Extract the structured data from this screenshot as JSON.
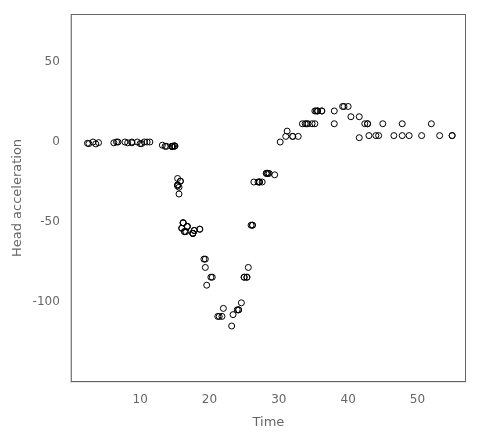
{
  "chart_data": {
    "type": "scatter",
    "x": [
      2.4,
      2.6,
      3.2,
      3.6,
      4.0,
      6.2,
      6.6,
      6.8,
      7.8,
      8.2,
      8.8,
      8.8,
      9.6,
      10.0,
      10.2,
      10.6,
      11.0,
      11.4,
      13.2,
      13.6,
      13.8,
      14.6,
      14.6,
      14.6,
      14.6,
      14.6,
      14.6,
      14.8,
      15.0,
      15.0,
      15.0,
      15.4,
      15.4,
      15.4,
      15.4,
      15.6,
      15.6,
      15.8,
      15.8,
      16.0,
      16.0,
      16.2,
      16.2,
      16.2,
      16.4,
      16.4,
      16.6,
      16.8,
      16.8,
      16.8,
      17.6,
      17.6,
      17.6,
      17.6,
      17.8,
      17.8,
      18.6,
      18.6,
      19.2,
      19.4,
      19.4,
      19.6,
      20.2,
      20.4,
      21.2,
      21.4,
      21.8,
      22.0,
      23.2,
      23.4,
      24.0,
      24.2,
      24.2,
      24.6,
      25.0,
      25.0,
      25.4,
      25.4,
      25.6,
      26.0,
      26.2,
      26.2,
      26.4,
      27.0,
      27.2,
      27.2,
      27.2,
      27.6,
      28.2,
      28.2,
      28.4,
      28.4,
      28.6,
      29.4,
      30.2,
      31.0,
      31.2,
      32.0,
      32.0,
      32.8,
      33.4,
      33.8,
      34.0,
      34.2,
      34.8,
      35.2,
      35.2,
      35.4,
      35.6,
      35.6,
      36.2,
      36.2,
      38.0,
      38.0,
      39.2,
      39.4,
      40.0,
      40.4,
      41.6,
      41.6,
      42.4,
      42.8,
      42.8,
      43.0,
      44.0,
      44.4,
      45.0,
      46.6,
      47.8,
      47.8,
      48.8,
      50.6,
      52.0,
      53.2,
      55.0,
      55.0
    ],
    "values": [
      -0.8,
      -1.0,
      0.0,
      -1.2,
      -0.4,
      -0.5,
      0.0,
      0.0,
      0.0,
      -0.5,
      0.0,
      -0.5,
      0.0,
      -1.0,
      -1.0,
      0.0,
      0.0,
      0.0,
      -2.0,
      -2.7,
      -2.7,
      -2.7,
      -2.7,
      -2.7,
      -2.7,
      -2.7,
      -2.7,
      -2.5,
      -2.5,
      -2.5,
      -2.5,
      -22.8,
      -26.8,
      -27.5,
      -26.8,
      -28.3,
      -32.5,
      -24.5,
      -24.5,
      -53.9,
      -53.9,
      -50.5,
      -50.5,
      -50.5,
      -56.0,
      -56.0,
      -56.0,
      -52.8,
      -52.8,
      -52.8,
      -57.1,
      -57.1,
      -57.1,
      -57.1,
      -55.3,
      -55.3,
      -54.5,
      -54.5,
      -73.2,
      -73.2,
      -78.4,
      -89.5,
      -84.5,
      -84.5,
      -109.0,
      -109.0,
      -109.0,
      -104.0,
      -115.0,
      -107.9,
      -104.9,
      -104.9,
      -104.9,
      -100.5,
      -84.5,
      -84.5,
      -84.5,
      -84.5,
      -78.4,
      -52.0,
      -52.0,
      -52.0,
      -25.0,
      -25.0,
      -25.0,
      -25.0,
      -25.0,
      -25.0,
      -19.6,
      -19.6,
      -19.6,
      -19.6,
      -19.6,
      -20.5,
      0.0,
      3.5,
      6.8,
      3.5,
      3.5,
      3.5,
      11.4,
      11.4,
      11.4,
      11.4,
      11.4,
      11.4,
      19.4,
      19.4,
      19.4,
      19.4,
      19.4,
      19.4,
      11.4,
      19.4,
      22.2,
      22.2,
      22.2,
      15.8,
      2.7,
      15.8,
      11.4,
      11.4,
      11.4,
      4.0,
      4.0,
      4.0,
      11.4,
      4.0,
      4.0,
      11.4,
      4.0,
      4.0,
      11.4,
      4.0,
      4.0,
      4.0
    ],
    "xlabel": "Time",
    "ylabel": "Head acceleration",
    "xlim": [
      0,
      57
    ],
    "ylim": [
      -150,
      80
    ],
    "xticks": [
      10,
      20,
      30,
      40,
      50
    ],
    "yticks": [
      -100,
      -50,
      0,
      50
    ],
    "color": "#000000",
    "marker": "circle",
    "grid": false
  }
}
